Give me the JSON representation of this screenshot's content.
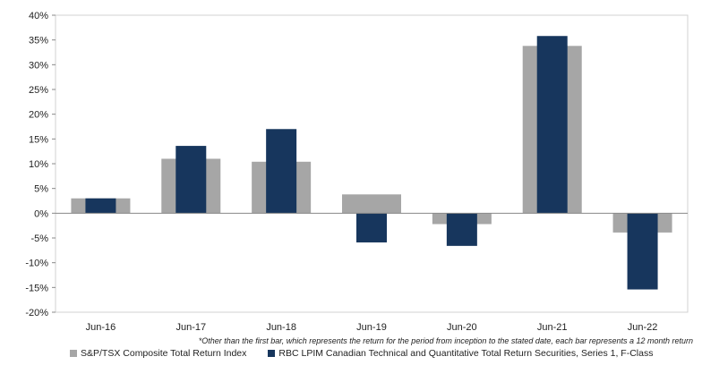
{
  "chart_data": {
    "type": "bar",
    "categories": [
      "Jun-16",
      "Jun-17",
      "Jun-18",
      "Jun-19",
      "Jun-20",
      "Jun-21",
      "Jun-22"
    ],
    "series": [
      {
        "name": "S&P/TSX Composite Total Return Index",
        "color": "#a6a6a6",
        "values": [
          3.0,
          11.0,
          10.4,
          3.8,
          -2.2,
          33.8,
          -3.9
        ]
      },
      {
        "name": "RBC LPIM Canadian Technical and Quantitative Total Return Securities, Series 1, F-Class",
        "color": "#17365d",
        "values": [
          3.0,
          13.6,
          17.0,
          -5.9,
          -6.6,
          35.8,
          -15.4
        ]
      }
    ],
    "ylim": [
      -20,
      40
    ],
    "yticks": [
      -20,
      -15,
      -10,
      -5,
      0,
      5,
      10,
      15,
      20,
      25,
      30,
      35,
      40
    ],
    "ytick_labels": [
      "-20%",
      "-15%",
      "-10%",
      "-5%",
      "0%",
      "5%",
      "10%",
      "15%",
      "20%",
      "25%",
      "30%",
      "35%",
      "40%"
    ],
    "grid": false,
    "legend_position": "bottom-left",
    "title": "",
    "xlabel": "",
    "ylabel": "",
    "footnote": "*Other than the first bar, which represents the return for the period from inception to the stated date, each bar represents a 12 month return"
  }
}
